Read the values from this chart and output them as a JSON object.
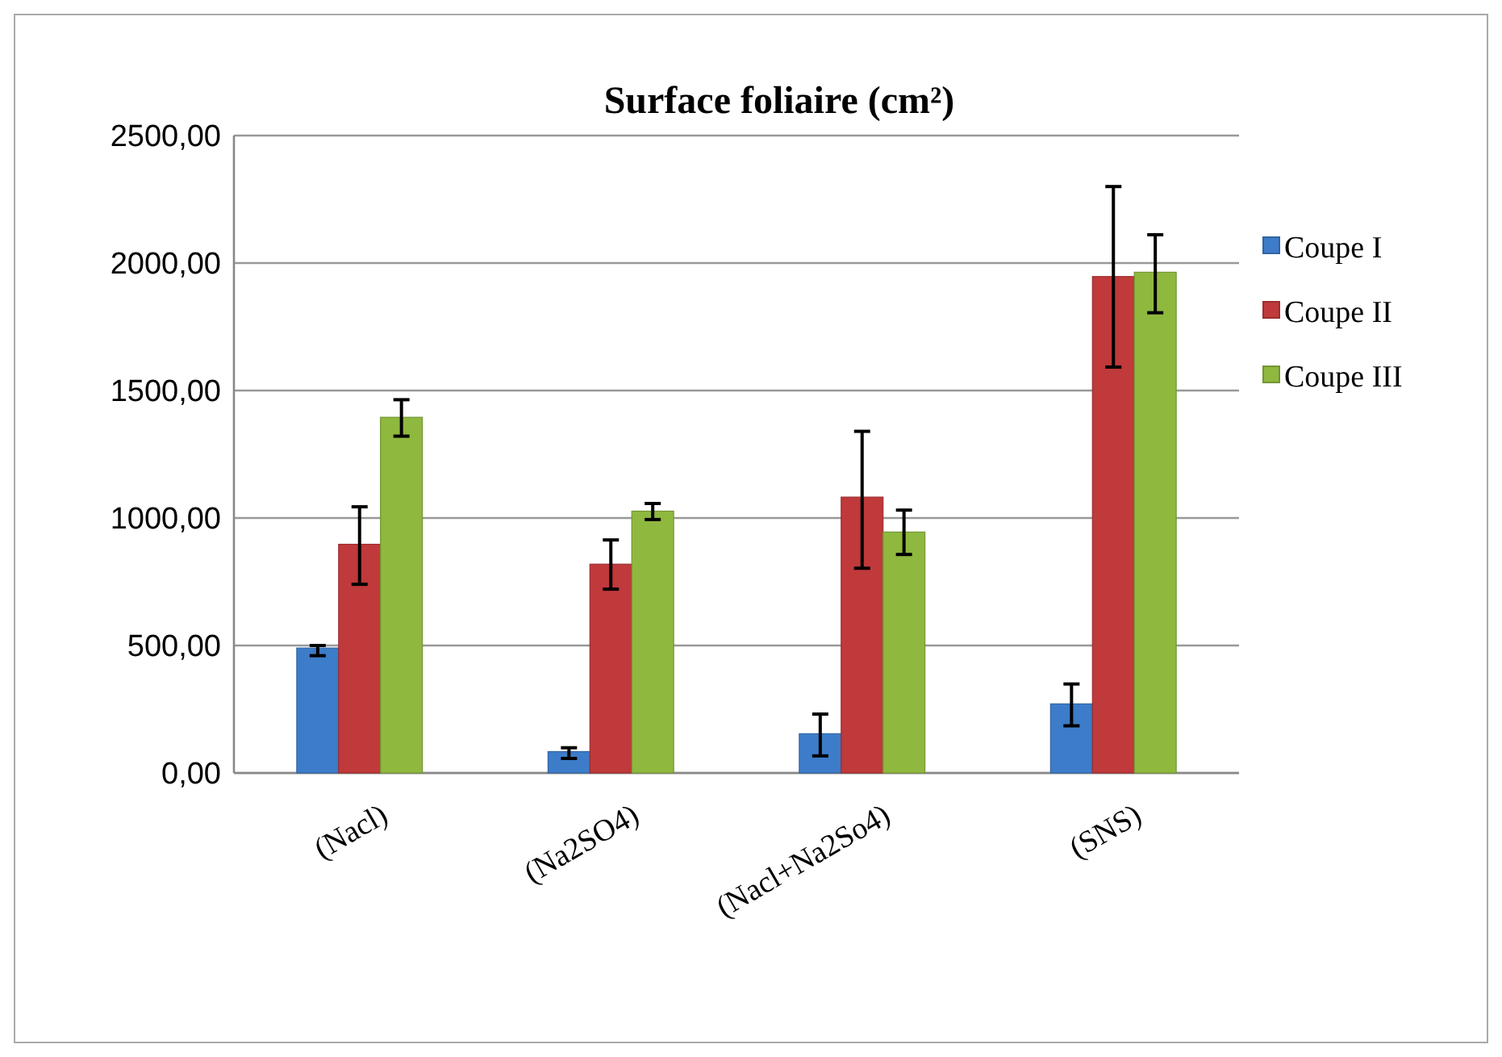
{
  "chart_data": {
    "type": "bar",
    "title": "Surface foliaire (cm²)",
    "categories": [
      "(Nacl)",
      "(Na2SO4)",
      "(Nacl+Na2So4)",
      "(SNS)"
    ],
    "series": [
      {
        "name": "Coupe I",
        "color": "#3d7cc9",
        "values": [
          490,
          84,
          154,
          271
        ],
        "errors": [
          [
            460,
            500
          ],
          [
            57,
            99
          ],
          [
            67,
            231
          ],
          [
            185,
            349
          ]
        ]
      },
      {
        "name": "Coupe II",
        "color": "#c0393b",
        "values": [
          897,
          819,
          1082,
          1947
        ],
        "errors": [
          [
            740,
            1044
          ],
          [
            721,
            914
          ],
          [
            803,
            1340
          ],
          [
            1592,
            2300
          ]
        ]
      },
      {
        "name": "Coupe III",
        "color": "#8fb83f",
        "values": [
          1395,
          1027,
          945,
          1964
        ],
        "errors": [
          [
            1321,
            1464
          ],
          [
            994,
            1057
          ],
          [
            857,
            1031
          ],
          [
            1805,
            2111
          ]
        ]
      }
    ],
    "ylim": [
      0,
      2500
    ],
    "yticks": [
      {
        "value": 0,
        "label": "0,00"
      },
      {
        "value": 500,
        "label": "500,00"
      },
      {
        "value": 1000,
        "label": "1000,00"
      },
      {
        "value": 1500,
        "label": "1500,00"
      },
      {
        "value": 2000,
        "label": "2000,00"
      },
      {
        "value": 2500,
        "label": "2500,00"
      }
    ],
    "grid": "y",
    "legend": "right"
  }
}
